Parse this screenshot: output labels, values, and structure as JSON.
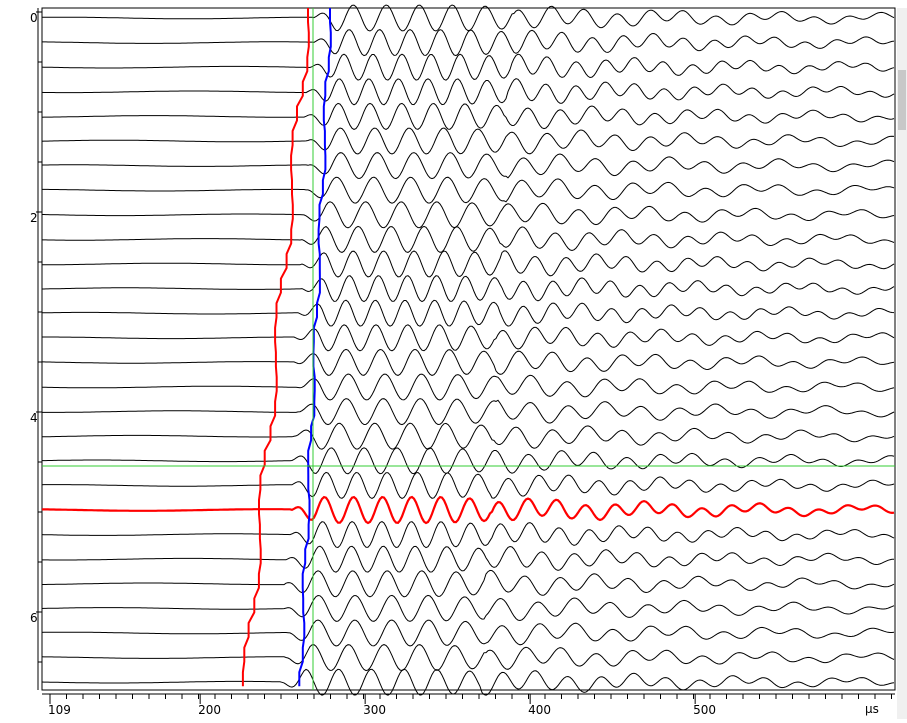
{
  "chart_data": {
    "type": "waveform",
    "x_unit": "μs",
    "xlim": [
      109,
      620
    ],
    "xticks": [
      109,
      200,
      300,
      400,
      500
    ],
    "ylim": [
      0,
      6.8
    ],
    "yticks": [
      0,
      2,
      4,
      6
    ],
    "trace_color": "#000000",
    "highlight_color": "#ff0000",
    "pick_colors": [
      "#ff0000",
      "#0000ff"
    ],
    "cursor_color": "#33cc33"
  }
}
